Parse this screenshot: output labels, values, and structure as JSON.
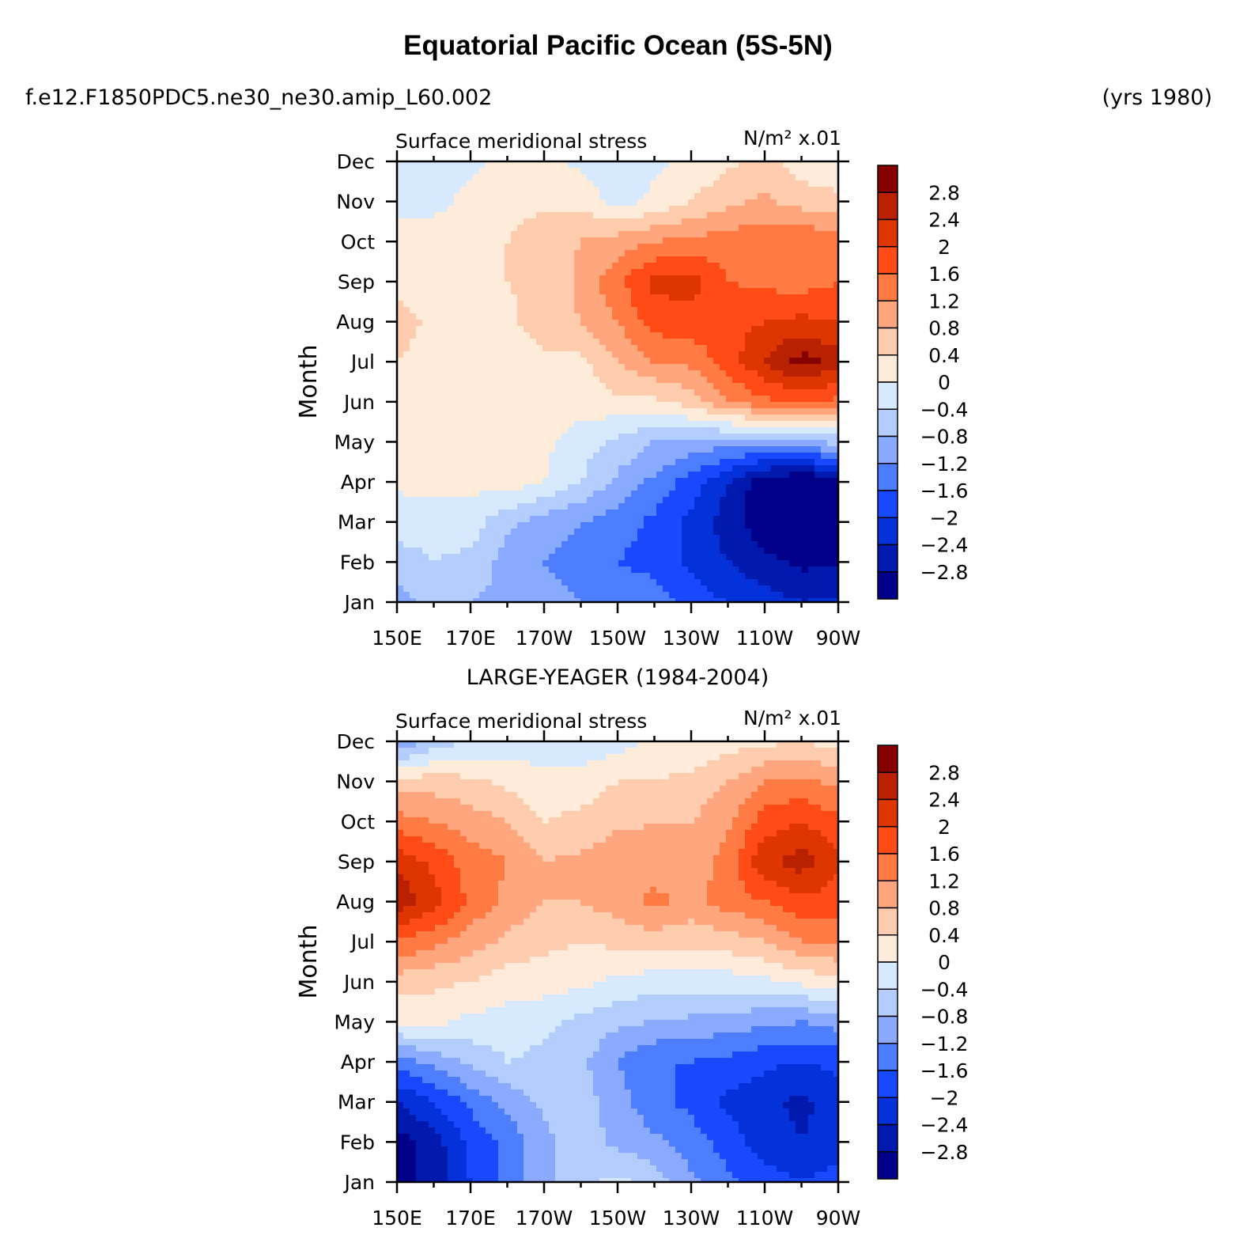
{
  "header": {
    "title": "Equatorial Pacific Ocean (5S-5N)",
    "case_name": "f.e12.F1850PDC5.ne30_ne30.amip_L60.002",
    "years": "(yrs 1980)"
  },
  "chart_data": [
    {
      "type": "heatmap",
      "panel_title": "",
      "left_string": "Surface meridional stress",
      "right_string": "N/m² x.01",
      "xlabel": "",
      "ylabel": "Month",
      "x_ticks": [
        "150E",
        "170E",
        "170W",
        "150W",
        "130W",
        "110W",
        "90W"
      ],
      "x_lon": [
        150,
        170,
        190,
        210,
        230,
        250,
        270
      ],
      "y_ticks": [
        "Jan",
        "Feb",
        "Mar",
        "Apr",
        "May",
        "Jun",
        "Jul",
        "Aug",
        "Sep",
        "Oct",
        "Nov",
        "Dec"
      ],
      "x": [
        150,
        160,
        170,
        180,
        190,
        200,
        210,
        220,
        230,
        240,
        250,
        260,
        270
      ],
      "values": [
        [
          -1.0,
          -0.6,
          -0.8,
          -0.9,
          -1.0,
          -1.2,
          -1.2,
          -1.3,
          -1.8,
          -2.0,
          -2.2,
          -2.4,
          -2.3
        ],
        [
          -0.5,
          -0.4,
          -0.5,
          -1.0,
          -1.2,
          -1.4,
          -1.6,
          -1.8,
          -2.1,
          -2.4,
          -2.7,
          -2.9,
          -2.9
        ],
        [
          -0.3,
          -0.3,
          -0.2,
          -0.7,
          -1.0,
          -1.2,
          -1.4,
          -1.7,
          -2.1,
          -2.6,
          -3.1,
          -3.3,
          -3.2
        ],
        [
          0.1,
          0.2,
          0.1,
          0.2,
          0.0,
          -0.4,
          -0.9,
          -1.3,
          -1.8,
          -2.4,
          -3.1,
          -3.3,
          -3.1
        ],
        [
          0.2,
          0.1,
          0.2,
          0.1,
          0.1,
          -0.2,
          -0.5,
          -0.8,
          -0.9,
          -1.0,
          -1.0,
          -0.8,
          -0.7
        ],
        [
          0.2,
          0.2,
          0.1,
          0.2,
          0.2,
          0.2,
          0.3,
          0.3,
          0.6,
          1.2,
          1.5,
          1.6,
          1.5
        ],
        [
          0.4,
          0.2,
          0.1,
          0.2,
          0.3,
          0.3,
          0.8,
          1.2,
          1.3,
          1.8,
          2.4,
          3.0,
          2.6
        ],
        [
          0.6,
          0.3,
          0.2,
          0.3,
          0.6,
          0.8,
          1.2,
          1.8,
          1.8,
          1.9,
          2.0,
          2.1,
          2.0
        ],
        [
          0.2,
          0.2,
          0.2,
          0.4,
          0.5,
          0.9,
          1.5,
          2.1,
          2.2,
          1.6,
          1.5,
          1.4,
          1.6
        ],
        [
          0.2,
          0.2,
          0.1,
          0.4,
          0.7,
          0.8,
          1.0,
          1.2,
          1.3,
          1.4,
          1.5,
          1.6,
          1.4
        ],
        [
          -0.2,
          -0.1,
          0.1,
          0.2,
          0.3,
          0.3,
          -0.2,
          0.1,
          0.4,
          0.7,
          0.9,
          0.6,
          0.5
        ],
        [
          -0.3,
          -0.2,
          -0.1,
          0.1,
          0.1,
          -0.1,
          -0.2,
          -0.1,
          0.1,
          0.3,
          0.5,
          0.2,
          0.1
        ]
      ]
    },
    {
      "type": "heatmap",
      "panel_title": "LARGE-YEAGER (1984-2004)",
      "left_string": "Surface meridional stress",
      "right_string": "N/m² x.01",
      "xlabel": "",
      "ylabel": "Month",
      "x_ticks": [
        "150E",
        "170E",
        "170W",
        "150W",
        "130W",
        "110W",
        "90W"
      ],
      "x_lon": [
        150,
        170,
        190,
        210,
        230,
        250,
        270
      ],
      "y_ticks": [
        "Jan",
        "Feb",
        "Mar",
        "Apr",
        "May",
        "Jun",
        "Jul",
        "Aug",
        "Sep",
        "Oct",
        "Nov",
        "Dec"
      ],
      "x": [
        150,
        160,
        170,
        180,
        190,
        200,
        210,
        220,
        230,
        240,
        250,
        260,
        270
      ],
      "values": [
        [
          -3.1,
          -2.6,
          -2.0,
          -1.4,
          -0.9,
          -0.5,
          -0.3,
          -0.6,
          -1.1,
          -1.5,
          -1.8,
          -2.0,
          -1.8
        ],
        [
          -3.0,
          -2.6,
          -1.9,
          -1.5,
          -0.9,
          -0.6,
          -0.9,
          -1.1,
          -1.4,
          -1.8,
          -2.2,
          -2.4,
          -2.2
        ],
        [
          -2.4,
          -2.0,
          -1.5,
          -1.1,
          -0.7,
          -0.6,
          -1.0,
          -1.5,
          -1.7,
          -2.1,
          -2.3,
          -2.5,
          -2.2
        ],
        [
          -1.4,
          -1.1,
          -0.7,
          -0.4,
          -0.5,
          -0.7,
          -1.2,
          -1.6,
          -1.6,
          -1.7,
          -1.9,
          -2.0,
          -1.9
        ],
        [
          0.1,
          0.1,
          -0.1,
          -0.2,
          -0.3,
          -0.5,
          -0.7,
          -0.8,
          -0.9,
          -1.0,
          -1.1,
          -1.2,
          -1.0
        ],
        [
          0.6,
          0.5,
          0.4,
          0.2,
          0.2,
          0.1,
          -0.1,
          -0.2,
          -0.2,
          -0.2,
          -0.1,
          0.1,
          0.2
        ],
        [
          1.6,
          1.3,
          1.0,
          0.7,
          0.5,
          0.4,
          0.5,
          0.6,
          0.5,
          0.6,
          0.8,
          1.2,
          1.3
        ],
        [
          2.7,
          2.2,
          1.5,
          1.1,
          0.8,
          0.8,
          1.0,
          1.3,
          1.1,
          1.4,
          1.6,
          1.9,
          1.8
        ],
        [
          2.3,
          1.9,
          1.4,
          1.2,
          0.8,
          0.9,
          1.1,
          1.0,
          0.9,
          1.4,
          2.3,
          2.6,
          2.1
        ],
        [
          1.4,
          1.2,
          1.0,
          0.8,
          0.4,
          0.5,
          0.7,
          0.8,
          0.8,
          1.1,
          1.8,
          2.0,
          1.7
        ],
        [
          0.5,
          0.6,
          0.5,
          0.3,
          0.1,
          0.2,
          0.4,
          0.4,
          0.5,
          0.8,
          1.2,
          1.3,
          1.1
        ],
        [
          -1.2,
          -0.6,
          -0.4,
          -0.2,
          -0.2,
          -0.3,
          -0.2,
          0.1,
          0.1,
          0.2,
          0.3,
          0.4,
          0.2
        ]
      ]
    }
  ],
  "colorbar": {
    "levels": [
      "2.8",
      "2.4",
      "2",
      "1.6",
      "1.2",
      "0.8",
      "0.4",
      "0",
      "−0.4",
      "−0.8",
      "−1.2",
      "−1.6",
      "−2",
      "−2.4",
      "−2.8"
    ],
    "level_values": [
      2.8,
      2.4,
      2.0,
      1.6,
      1.2,
      0.8,
      0.4,
      0.0,
      -0.4,
      -0.8,
      -1.2,
      -1.6,
      -2.0,
      -2.4,
      -2.8
    ],
    "colors": [
      "#870000",
      "#B92100",
      "#DF3600",
      "#FF4B16",
      "#FF7B43",
      "#FFA67F",
      "#FFCCAE",
      "#FFEBDA",
      "#D6E9FF",
      "#B3CDFF",
      "#89AAFF",
      "#4D7EFF",
      "#1949FF",
      "#0531DA",
      "#001AAF",
      "#00008A"
    ]
  }
}
